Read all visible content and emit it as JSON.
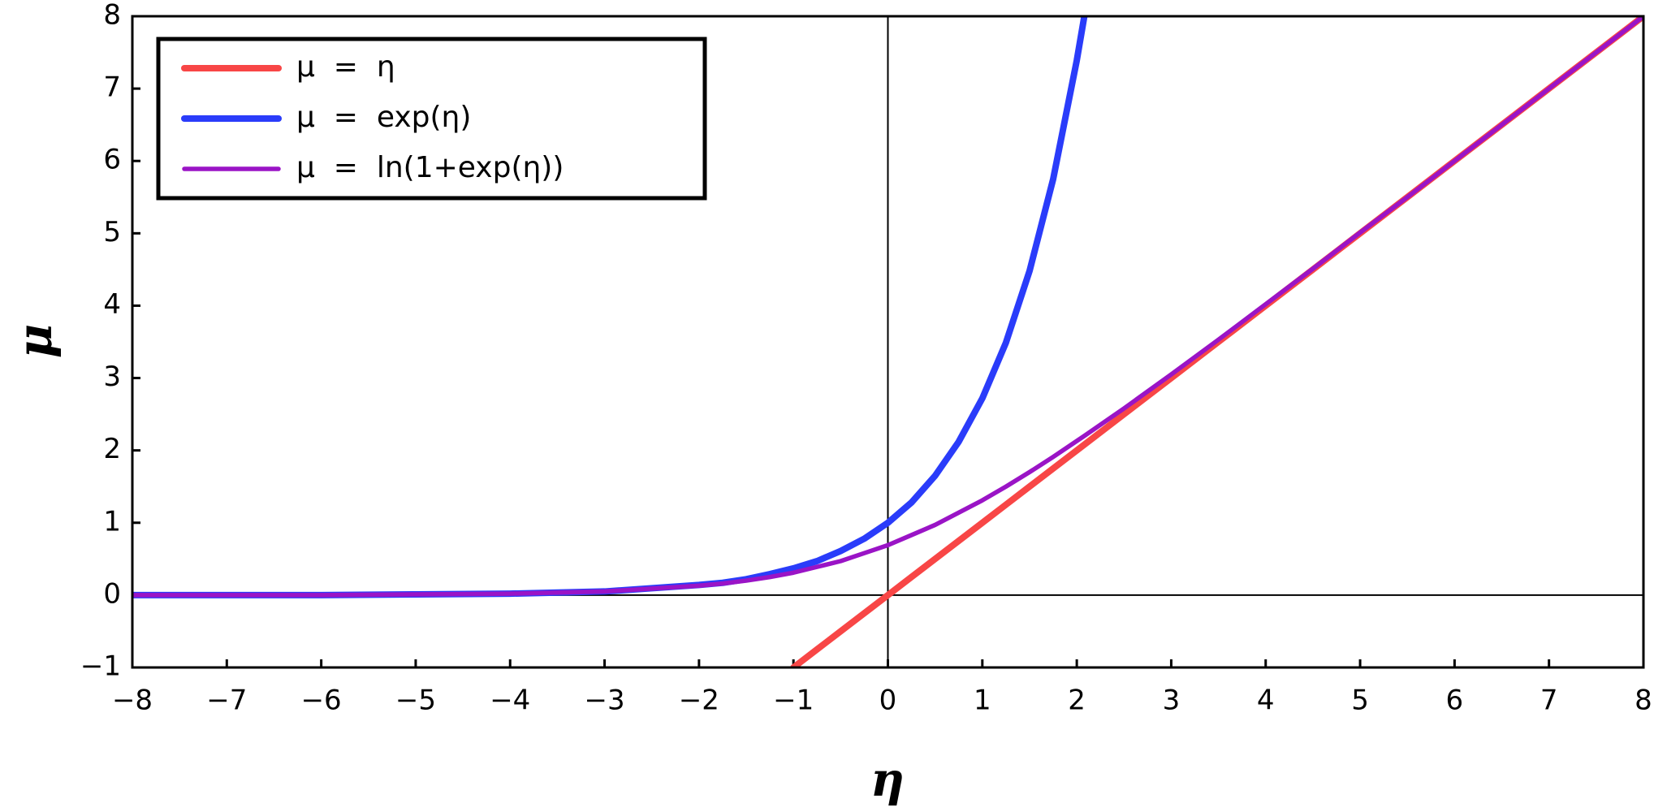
{
  "chart_data": {
    "type": "line",
    "x_label": "η",
    "y_label": "μ",
    "x": [
      -8,
      -7,
      -6,
      -5,
      -4,
      -3,
      -2,
      -1.75,
      -1.5,
      -1.25,
      -1,
      -0.75,
      -0.5,
      -0.25,
      0,
      0.25,
      0.5,
      0.75,
      1,
      1.25,
      1.5,
      1.75,
      2,
      2.08,
      2.5,
      3,
      3.5,
      4,
      4.5,
      5,
      5.5,
      6,
      6.5,
      7,
      7.5,
      8
    ],
    "series": [
      {
        "name": "μ  =  η",
        "color": "#f84646",
        "values": [
          null,
          null,
          null,
          null,
          null,
          null,
          null,
          null,
          null,
          null,
          -1,
          -0.75,
          -0.5,
          -0.25,
          0,
          0.25,
          0.5,
          0.75,
          1,
          1.25,
          1.5,
          1.75,
          2,
          2.08,
          2.5,
          3,
          3.5,
          4,
          4.5,
          5,
          5.5,
          6,
          6.5,
          7,
          7.5,
          8
        ]
      },
      {
        "name": "μ  =  exp(η)",
        "color": "#2a3cfa",
        "values": [
          0,
          0,
          0,
          0.01,
          0.02,
          0.05,
          0.14,
          0.17,
          0.22,
          0.29,
          0.37,
          0.47,
          0.61,
          0.78,
          1,
          1.28,
          1.65,
          2.12,
          2.72,
          3.49,
          4.48,
          5.75,
          7.39,
          8,
          null,
          null,
          null,
          null,
          null,
          null,
          null,
          null,
          null,
          null,
          null,
          null
        ]
      },
      {
        "name": "μ  =  ln(1+exp(η))",
        "color": "#9a14c6",
        "values": [
          0,
          0,
          0,
          0.01,
          0.02,
          0.05,
          0.13,
          0.16,
          0.2,
          0.25,
          0.31,
          0.39,
          0.47,
          0.58,
          0.69,
          0.83,
          0.97,
          1.14,
          1.31,
          1.5,
          1.7,
          1.91,
          2.13,
          2.2,
          2.58,
          3.05,
          3.53,
          4.02,
          4.51,
          5.01,
          5.5,
          6,
          6.5,
          7,
          7.5,
          8
        ]
      }
    ],
    "xlim": [
      -8,
      8
    ],
    "xticks": [
      {
        "value": -8,
        "label": "−8"
      },
      {
        "value": -7,
        "label": "−7"
      },
      {
        "value": -6,
        "label": "−6"
      },
      {
        "value": -5,
        "label": "−5"
      },
      {
        "value": -4,
        "label": "−4"
      },
      {
        "value": -3,
        "label": "−3"
      },
      {
        "value": -2,
        "label": "−2"
      },
      {
        "value": -1,
        "label": "−1"
      },
      0,
      1,
      2,
      3,
      4,
      5,
      6,
      7,
      8
    ],
    "ylim": [
      -1,
      8
    ],
    "yticks": [
      {
        "value": -1,
        "label": "−1"
      },
      0,
      1,
      2,
      3,
      4,
      5,
      6,
      7,
      8
    ],
    "zero_lines": true,
    "legend": "upper left"
  }
}
